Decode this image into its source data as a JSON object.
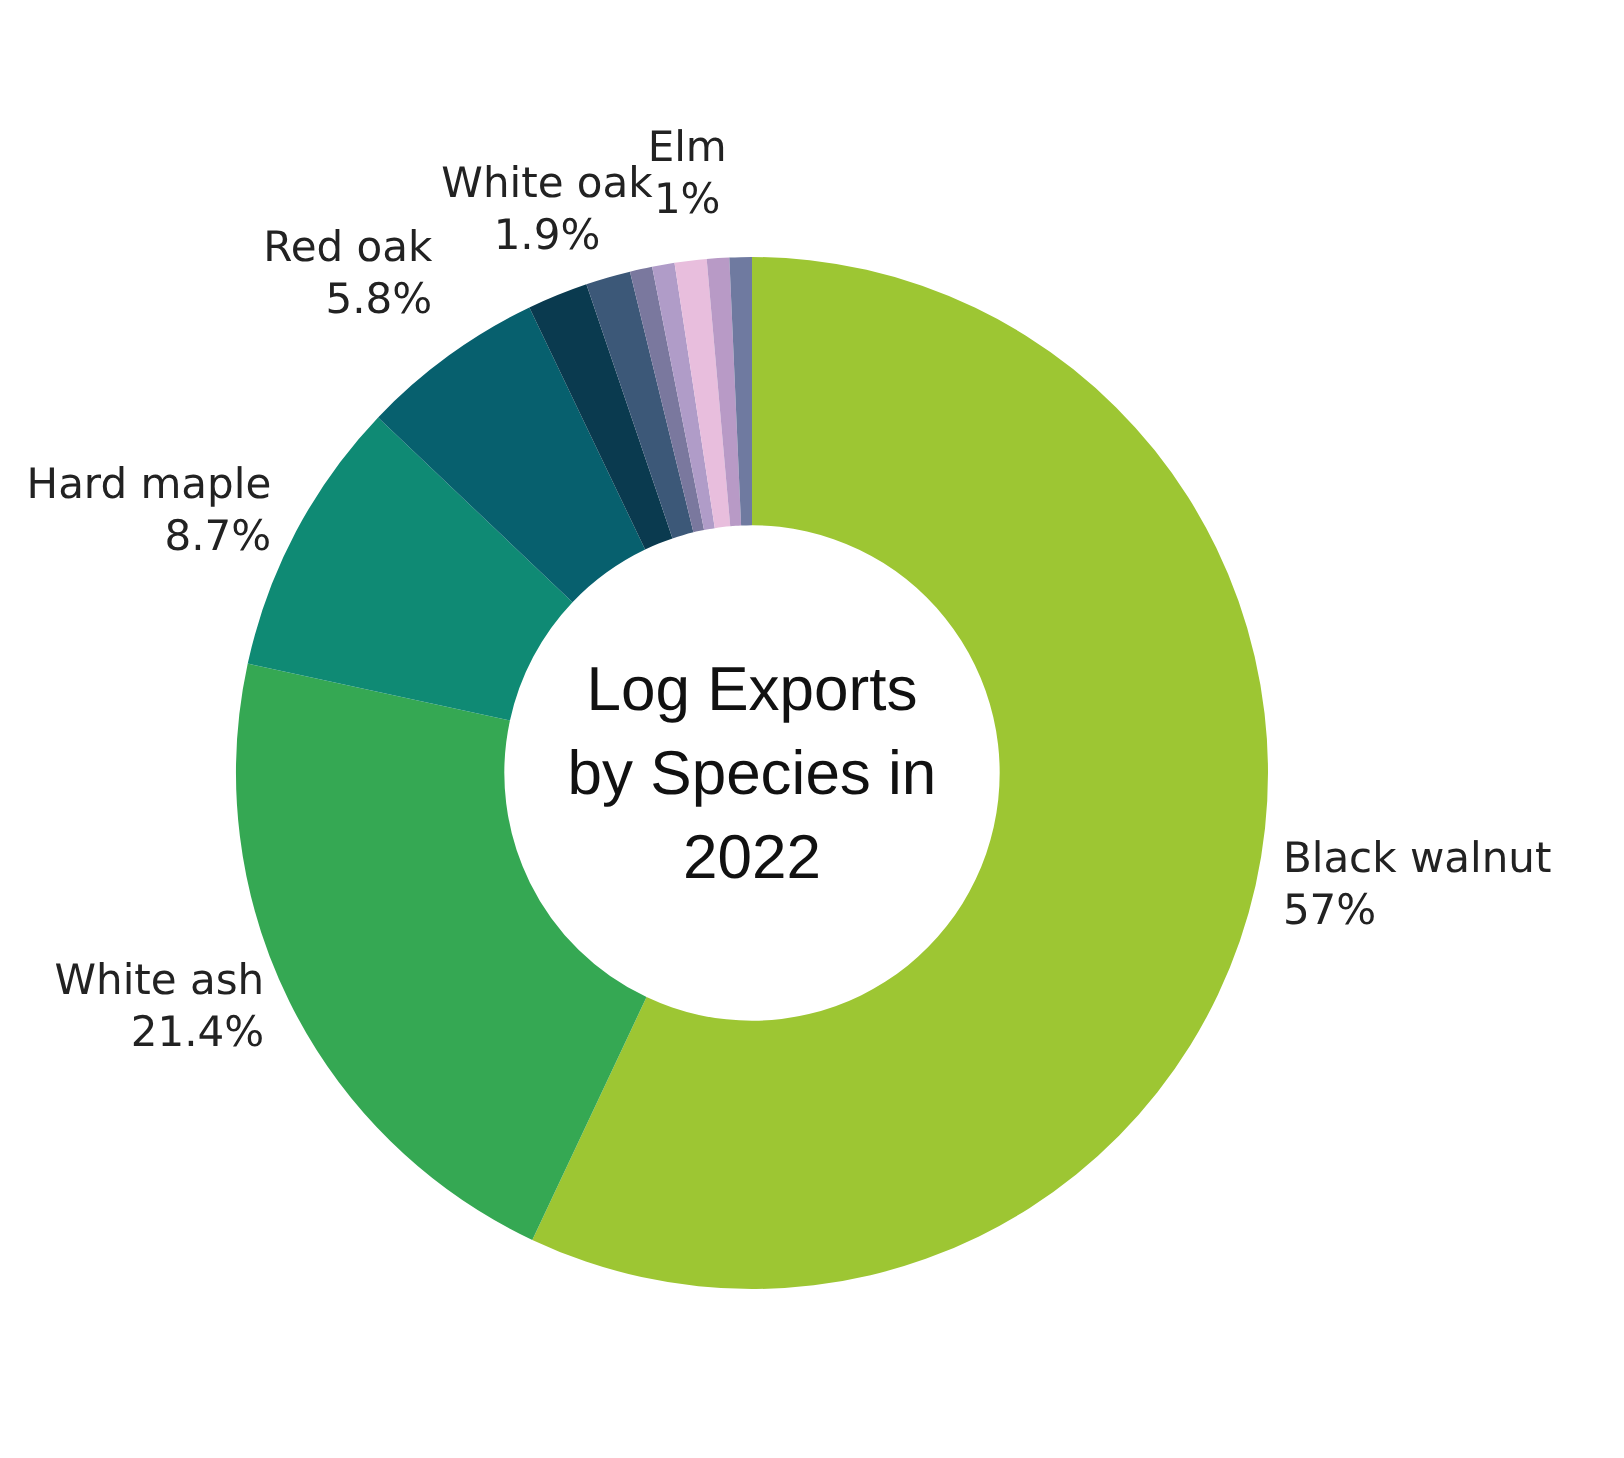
{
  "chart_data": {
    "type": "donut",
    "title": "Log Exports by Species in 2022",
    "categories": [
      "Black walnut",
      "White ash",
      "Hard maple",
      "Red oak",
      "White oak",
      null,
      null,
      null,
      "Elm",
      null,
      null
    ],
    "values": [
      57,
      21.4,
      8.7,
      5.8,
      1.9,
      1.4,
      0.7,
      0.7,
      1,
      0.7,
      0.7
    ],
    "value_labels": [
      "57%",
      "21.4%",
      "8.7%",
      "5.8%",
      "1.9%",
      null,
      null,
      null,
      "1%",
      null,
      null
    ],
    "colors": [
      "#9dc633",
      "#35a853",
      "#0f8a74",
      "#07606e",
      "#0a3a4f",
      "#3c5878",
      "#7a789e",
      "#b09cc8",
      "#e8bedd",
      "#b89ac6",
      "#6f7aa0"
    ],
    "legend": false
  }
}
